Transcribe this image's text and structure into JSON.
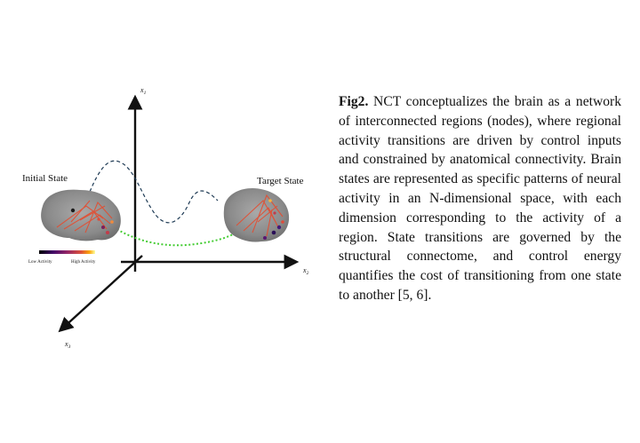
{
  "figure": {
    "axes": {
      "x1": "x",
      "x1_sub": "1",
      "x2": "x",
      "x2_sub": "2",
      "x3": "x",
      "x3_sub": "3"
    },
    "initial_state_label": "Initial State",
    "target_state_label": "Target State",
    "colorbar": {
      "low_label": "Low Activity",
      "high_label": "High Activity"
    },
    "colors": {
      "axis": "#111111",
      "trajectory_dashed": "#1f3b55",
      "trajectory_dotted": "#44cc33",
      "brain": "#8c8c8c",
      "edge": "#e8482a"
    }
  },
  "caption": {
    "label": "Fig2.",
    "text": " NCT conceptualizes the brain as a network of interconnected regions (nodes), where regional activity transitions are driven by control inputs and constrained by anatomical connectivity. Brain states are represented as specific patterns of neural activity in an N-dimensional space, with each dimension corresponding to the activity of a region. State transitions are governed by the structural connectome, and control energy quantifies the cost of transitioning from one state to another [5, 6]."
  }
}
